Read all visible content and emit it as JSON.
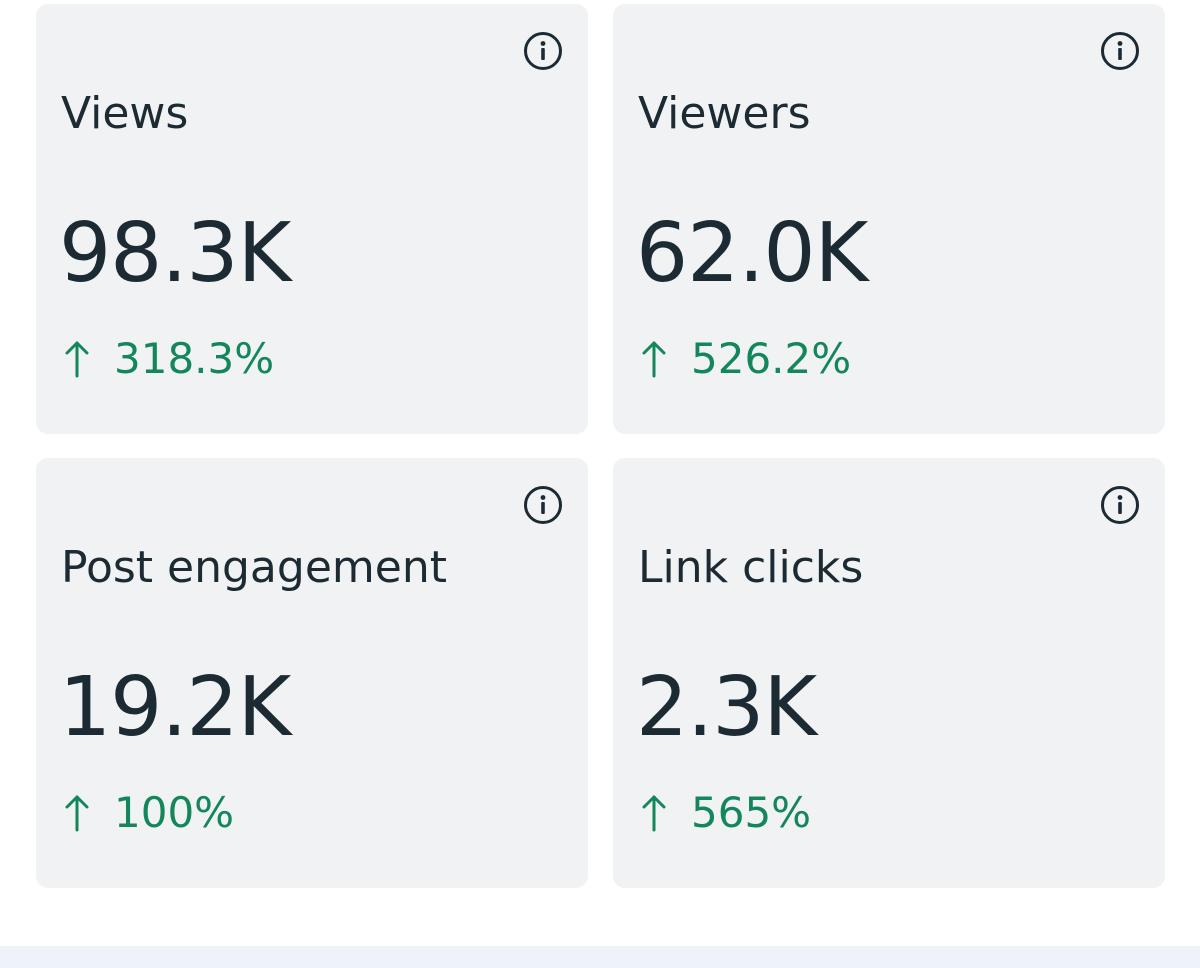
{
  "colors": {
    "card_background": "#f1f2f3",
    "text_primary": "#1c2b33",
    "positive_change": "#13875b"
  },
  "icons": {
    "info": "info-icon",
    "trend": "arrow-up-icon"
  },
  "metrics": [
    {
      "label": "Views",
      "value": "98.3K",
      "change": "318.3%"
    },
    {
      "label": "Viewers",
      "value": "62.0K",
      "change": "526.2%"
    },
    {
      "label": "Post engagement",
      "value": "19.2K",
      "change": "100%"
    },
    {
      "label": "Link clicks",
      "value": "2.3K",
      "change": "565%"
    }
  ]
}
